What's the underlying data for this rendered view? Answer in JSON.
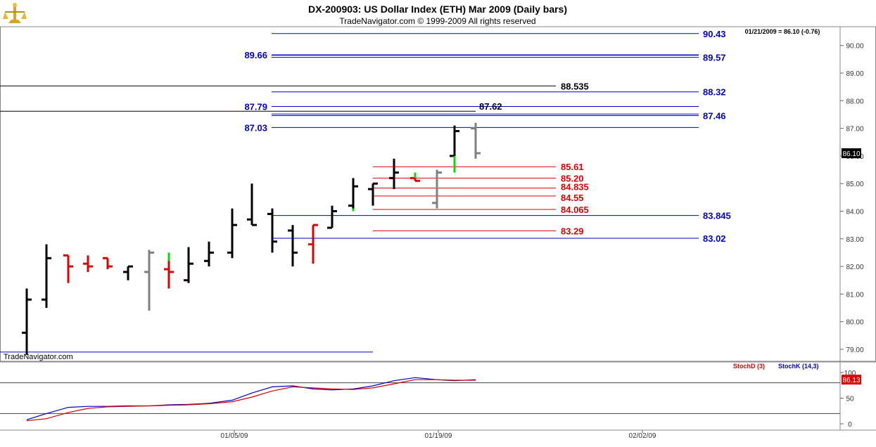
{
  "header": {
    "title": "DX-200903:  US Dollar Index (ETH) Mar 2009  (Daily bars)",
    "copyright": "TradeNavigator.com © 1999-2009 All rights reserved",
    "date_readout": "01/21/2009 = 86.10 (-0.76)"
  },
  "watermark": "TradeNavigator.com",
  "colors": {
    "up_bar": "#000000",
    "down_bar": "#e00000",
    "neutral_bar": "#808080",
    "green_bar": "#00e000",
    "blue_level": "#0000cc",
    "red_level": "#e00000",
    "black_level": "#000000",
    "stochK": "#0000cc",
    "stochD": "#e00000"
  },
  "chart_data": [
    {
      "type": "ohlc",
      "title": "DX-200903:  US Dollar Index (ETH) Mar 2009  (Daily bars)",
      "ylim": [
        78.7,
        90.9
      ],
      "yticks": [
        "79.00",
        "80.00",
        "81.00",
        "82.00",
        "83.00",
        "84.00",
        "85.00",
        "86.00",
        "87.00",
        "88.00",
        "89.00",
        "90.00"
      ],
      "xticks": [
        "01/05/09",
        "01/19/09",
        "02/02/09"
      ],
      "last_price_label": "86.10",
      "bars": [
        {
          "o": 79.6,
          "h": 81.2,
          "l": 78.8,
          "c": 80.8,
          "color": "black"
        },
        {
          "o": 80.8,
          "h": 82.8,
          "l": 80.5,
          "c": 82.3,
          "color": "black"
        },
        {
          "o": 82.4,
          "h": 82.4,
          "l": 81.4,
          "c": 82.0,
          "color": "red"
        },
        {
          "o": 82.1,
          "h": 82.4,
          "l": 81.8,
          "c": 82.0,
          "color": "red"
        },
        {
          "o": 82.3,
          "h": 82.3,
          "l": 81.9,
          "c": 82.0,
          "color": "red"
        },
        {
          "o": 81.8,
          "h": 82.0,
          "l": 81.5,
          "c": 82.0,
          "color": "black"
        },
        {
          "o": 81.8,
          "h": 82.6,
          "l": 80.4,
          "c": 82.5,
          "color": "gray"
        },
        {
          "o": 81.9,
          "h": 82.5,
          "l": 81.2,
          "c": 81.8,
          "color": "red"
        },
        {
          "o": 81.5,
          "h": 82.7,
          "l": 81.4,
          "c": 82.1,
          "color": "black"
        },
        {
          "o": 82.2,
          "h": 82.9,
          "l": 82.0,
          "c": 82.5,
          "color": "black"
        },
        {
          "o": 82.5,
          "h": 84.1,
          "l": 82.3,
          "c": 83.5,
          "color": "black"
        },
        {
          "o": 83.7,
          "h": 85.0,
          "l": 83.5,
          "c": 83.5,
          "color": "black"
        },
        {
          "o": 83.9,
          "h": 84.1,
          "l": 82.5,
          "c": 82.9,
          "color": "black"
        },
        {
          "o": 83.3,
          "h": 83.5,
          "l": 82.0,
          "c": 82.5,
          "color": "black"
        },
        {
          "o": 82.8,
          "h": 83.5,
          "l": 82.1,
          "c": 83.5,
          "color": "red"
        },
        {
          "o": 83.4,
          "h": 84.2,
          "l": 83.4,
          "c": 84.0,
          "color": "black"
        },
        {
          "o": 84.2,
          "h": 85.2,
          "l": 84.0,
          "c": 84.9,
          "color": "black"
        },
        {
          "o": 84.8,
          "h": 85.0,
          "l": 84.2,
          "c": 85.0,
          "color": "black"
        },
        {
          "o": 85.2,
          "h": 85.9,
          "l": 84.8,
          "c": 85.4,
          "color": "black"
        },
        {
          "o": 85.2,
          "h": 85.4,
          "l": 85.1,
          "c": 85.1,
          "color": "red"
        },
        {
          "o": 84.3,
          "h": 85.5,
          "l": 84.1,
          "c": 85.4,
          "color": "gray"
        },
        {
          "o": 86.0,
          "h": 87.1,
          "l": 85.4,
          "c": 86.9,
          "color": "black"
        },
        {
          "o": 87.0,
          "h": 87.2,
          "l": 85.9,
          "c": 86.1,
          "color": "gray"
        }
      ],
      "levels": [
        {
          "value": 90.43,
          "label": "90.43",
          "color": "blue",
          "side": "right"
        },
        {
          "value": 89.66,
          "label": "89.66",
          "color": "blue",
          "side": "left"
        },
        {
          "value": 89.57,
          "label": "89.57",
          "color": "blue",
          "side": "right"
        },
        {
          "value": 88.535,
          "label": "88.535",
          "color": "black",
          "side": "mid"
        },
        {
          "value": 88.32,
          "label": "88.32",
          "color": "blue",
          "side": "right"
        },
        {
          "value": 87.79,
          "label": "87.79",
          "color": "blue",
          "side": "left"
        },
        {
          "value": 87.62,
          "label": "87.62",
          "color": "black",
          "side": "mid"
        },
        {
          "value": 87.46,
          "label": "87.46",
          "color": "blue",
          "side": "right"
        },
        {
          "value": 87.03,
          "label": "87.03",
          "color": "blue",
          "side": "left"
        },
        {
          "value": 85.61,
          "label": "85.61",
          "color": "red",
          "side": "red"
        },
        {
          "value": 85.2,
          "label": "85.20",
          "color": "red",
          "side": "red"
        },
        {
          "value": 84.835,
          "label": "84.835",
          "color": "red",
          "side": "red"
        },
        {
          "value": 84.55,
          "label": "84.55",
          "color": "red",
          "side": "red"
        },
        {
          "value": 84.065,
          "label": "84.065",
          "color": "red",
          "side": "red"
        },
        {
          "value": 83.845,
          "label": "83.845",
          "color": "blue",
          "side": "right"
        },
        {
          "value": 83.29,
          "label": "83.29",
          "color": "red",
          "side": "red"
        },
        {
          "value": 83.02,
          "label": "83.02",
          "color": "blue",
          "side": "right"
        },
        {
          "value": 78.9,
          "label": "",
          "color": "blue",
          "side": "none"
        }
      ]
    },
    {
      "type": "line",
      "legend": [
        "StochD (3)",
        "StochK (14,3)"
      ],
      "ylim": [
        0,
        100
      ],
      "yticks": [
        "0",
        "50",
        "100"
      ],
      "last_value_label": "86.13",
      "series": [
        {
          "name": "StochK (14,3)",
          "color": "blue",
          "values": [
            8,
            20,
            32,
            34,
            34,
            35,
            35,
            37,
            38,
            40,
            46,
            60,
            72,
            74,
            68,
            66,
            68,
            74,
            84,
            90,
            86,
            84,
            86
          ]
        },
        {
          "name": "StochD (3)",
          "color": "red",
          "values": [
            6,
            10,
            22,
            30,
            33,
            34,
            35,
            36,
            37,
            39,
            43,
            52,
            64,
            72,
            70,
            68,
            67,
            70,
            78,
            86,
            86,
            85,
            85
          ]
        }
      ]
    }
  ]
}
